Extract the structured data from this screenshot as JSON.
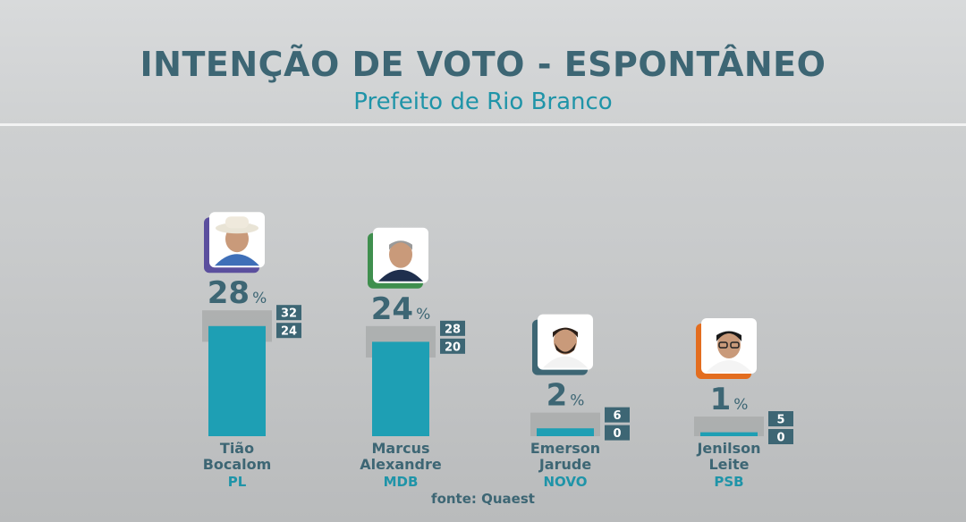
{
  "title": "INTENÇÃO DE VOTO - ESPONTÂNEO",
  "subtitle": "Prefeito de Rio Branco",
  "source": "fonte: Quaest",
  "colors": {
    "bar": "#1e9fb4",
    "range": "#a9abac",
    "text": "#3d6674",
    "accent": "#1f94a8",
    "box": "#3d6674",
    "photo_frame": "#ffffff"
  },
  "chart_data": {
    "type": "bar",
    "title": "INTENÇÃO DE VOTO - ESPONTÂNEO",
    "subtitle": "Prefeito de Rio Branco",
    "ylim": [
      0,
      32
    ],
    "unit": "%",
    "categories": [
      "Tião Bocalom",
      "Marcus Alexandre",
      "Emerson Jarude",
      "Jenilson Leite"
    ],
    "candidates": [
      {
        "name_line1": "Tião",
        "name_line2": "Bocalom",
        "party": "PL",
        "value": 28,
        "upper": 32,
        "lower": 24,
        "party_color": "#5b4f9e",
        "photo_icon": "candidate-photo-hat"
      },
      {
        "name_line1": "Marcus",
        "name_line2": "Alexandre",
        "party": "MDB",
        "value": 24,
        "upper": 28,
        "lower": 20,
        "party_color": "#3f8f4e",
        "photo_icon": "candidate-photo-suit"
      },
      {
        "name_line1": "Emerson",
        "name_line2": "Jarude",
        "party": "NOVO",
        "value": 2,
        "upper": 6,
        "lower": 0,
        "party_color": "#3d6674",
        "photo_icon": "candidate-photo-beard"
      },
      {
        "name_line1": "Jenilson",
        "name_line2": "Leite",
        "party": "PSB",
        "value": 1,
        "upper": 5,
        "lower": 0,
        "party_color": "#e36d1f",
        "photo_icon": "candidate-photo-glasses"
      }
    ]
  }
}
